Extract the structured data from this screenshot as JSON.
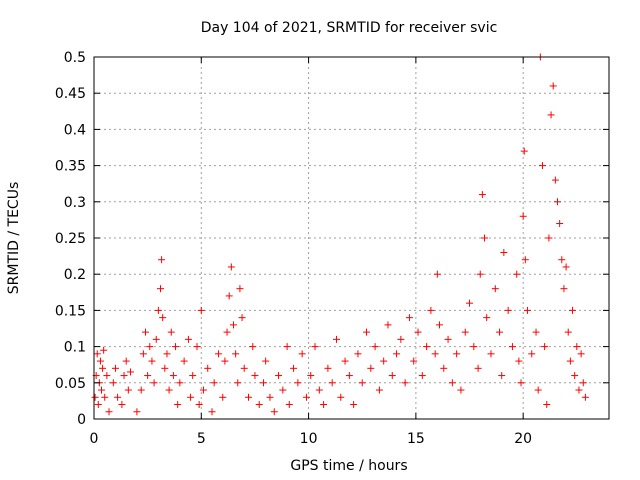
{
  "chart_data": {
    "type": "scatter",
    "title": "Day 104 of 2021, SRMTID for receiver svic",
    "xlabel": "GPS time / hours",
    "ylabel": "SRMTID / TECUs",
    "xlim": [
      0,
      24
    ],
    "ylim": [
      0,
      0.5
    ],
    "x_ticks": [
      "0",
      "5",
      "10",
      "15",
      "20"
    ],
    "x_tick_values": [
      0,
      5,
      10,
      15,
      20
    ],
    "y_ticks": [
      "0",
      "0.05",
      "0.1",
      "0.15",
      "0.2",
      "0.25",
      "0.3",
      "0.35",
      "0.4",
      "0.45",
      "0.5"
    ],
    "y_tick_values": [
      0,
      0.05,
      0.1,
      0.15,
      0.2,
      0.25,
      0.3,
      0.35,
      0.4,
      0.45,
      0.5
    ],
    "grid": true,
    "marker": "plus",
    "color": "#ff0000",
    "series": [
      {
        "points": [
          [
            0.05,
            0.03
          ],
          [
            0.1,
            0.06
          ],
          [
            0.15,
            0.09
          ],
          [
            0.2,
            0.02
          ],
          [
            0.25,
            0.05
          ],
          [
            0.3,
            0.08
          ],
          [
            0.35,
            0.04
          ],
          [
            0.4,
            0.07
          ],
          [
            0.45,
            0.095
          ],
          [
            0.5,
            0.03
          ],
          [
            0.6,
            0.06
          ],
          [
            0.7,
            0.01
          ],
          [
            0.9,
            0.05
          ],
          [
            1.0,
            0.07
          ],
          [
            1.1,
            0.03
          ],
          [
            1.3,
            0.02
          ],
          [
            1.4,
            0.06
          ],
          [
            1.5,
            0.08
          ],
          [
            1.6,
            0.04
          ],
          [
            1.7,
            0.065
          ],
          [
            2.0,
            0.01
          ],
          [
            2.2,
            0.04
          ],
          [
            2.3,
            0.09
          ],
          [
            2.4,
            0.12
          ],
          [
            2.5,
            0.06
          ],
          [
            2.6,
            0.1
          ],
          [
            2.7,
            0.08
          ],
          [
            2.8,
            0.05
          ],
          [
            2.9,
            0.11
          ],
          [
            3.0,
            0.15
          ],
          [
            3.1,
            0.18
          ],
          [
            3.15,
            0.22
          ],
          [
            3.2,
            0.14
          ],
          [
            3.3,
            0.07
          ],
          [
            3.4,
            0.09
          ],
          [
            3.5,
            0.04
          ],
          [
            3.6,
            0.12
          ],
          [
            3.7,
            0.06
          ],
          [
            3.8,
            0.1
          ],
          [
            3.9,
            0.02
          ],
          [
            4.0,
            0.05
          ],
          [
            4.2,
            0.08
          ],
          [
            4.4,
            0.11
          ],
          [
            4.5,
            0.03
          ],
          [
            4.6,
            0.06
          ],
          [
            4.8,
            0.1
          ],
          [
            4.9,
            0.02
          ],
          [
            5.0,
            0.15
          ],
          [
            5.1,
            0.04
          ],
          [
            5.3,
            0.07
          ],
          [
            5.5,
            0.01
          ],
          [
            5.6,
            0.05
          ],
          [
            5.8,
            0.09
          ],
          [
            6.0,
            0.03
          ],
          [
            6.1,
            0.08
          ],
          [
            6.2,
            0.12
          ],
          [
            6.3,
            0.17
          ],
          [
            6.4,
            0.21
          ],
          [
            6.5,
            0.13
          ],
          [
            6.6,
            0.09
          ],
          [
            6.7,
            0.05
          ],
          [
            6.8,
            0.18
          ],
          [
            6.9,
            0.14
          ],
          [
            7.0,
            0.07
          ],
          [
            7.2,
            0.03
          ],
          [
            7.4,
            0.1
          ],
          [
            7.5,
            0.06
          ],
          [
            7.7,
            0.02
          ],
          [
            7.9,
            0.05
          ],
          [
            8.0,
            0.08
          ],
          [
            8.2,
            0.03
          ],
          [
            8.4,
            0.01
          ],
          [
            8.6,
            0.06
          ],
          [
            8.8,
            0.04
          ],
          [
            9.0,
            0.1
          ],
          [
            9.1,
            0.02
          ],
          [
            9.3,
            0.07
          ],
          [
            9.5,
            0.05
          ],
          [
            9.7,
            0.09
          ],
          [
            9.9,
            0.03
          ],
          [
            10.1,
            0.06
          ],
          [
            10.3,
            0.1
          ],
          [
            10.5,
            0.04
          ],
          [
            10.7,
            0.02
          ],
          [
            10.9,
            0.07
          ],
          [
            11.1,
            0.05
          ],
          [
            11.3,
            0.11
          ],
          [
            11.5,
            0.03
          ],
          [
            11.7,
            0.08
          ],
          [
            11.9,
            0.06
          ],
          [
            12.1,
            0.02
          ],
          [
            12.3,
            0.09
          ],
          [
            12.5,
            0.05
          ],
          [
            12.7,
            0.12
          ],
          [
            12.9,
            0.07
          ],
          [
            13.1,
            0.1
          ],
          [
            13.3,
            0.04
          ],
          [
            13.5,
            0.08
          ],
          [
            13.7,
            0.13
          ],
          [
            13.9,
            0.06
          ],
          [
            14.1,
            0.09
          ],
          [
            14.3,
            0.11
          ],
          [
            14.5,
            0.05
          ],
          [
            14.7,
            0.14
          ],
          [
            14.9,
            0.08
          ],
          [
            15.1,
            0.12
          ],
          [
            15.3,
            0.06
          ],
          [
            15.5,
            0.1
          ],
          [
            15.7,
            0.15
          ],
          [
            15.9,
            0.09
          ],
          [
            16.0,
            0.2
          ],
          [
            16.1,
            0.13
          ],
          [
            16.3,
            0.07
          ],
          [
            16.5,
            0.11
          ],
          [
            16.7,
            0.05
          ],
          [
            16.9,
            0.09
          ],
          [
            17.1,
            0.04
          ],
          [
            17.3,
            0.12
          ],
          [
            17.5,
            0.16
          ],
          [
            17.7,
            0.1
          ],
          [
            17.9,
            0.07
          ],
          [
            18.0,
            0.2
          ],
          [
            18.1,
            0.31
          ],
          [
            18.2,
            0.25
          ],
          [
            18.3,
            0.14
          ],
          [
            18.5,
            0.09
          ],
          [
            18.7,
            0.18
          ],
          [
            18.9,
            0.12
          ],
          [
            19.0,
            0.06
          ],
          [
            19.1,
            0.23
          ],
          [
            19.3,
            0.15
          ],
          [
            19.5,
            0.1
          ],
          [
            19.7,
            0.2
          ],
          [
            19.8,
            0.08
          ],
          [
            19.9,
            0.05
          ],
          [
            20.0,
            0.28
          ],
          [
            20.05,
            0.37
          ],
          [
            20.1,
            0.22
          ],
          [
            20.2,
            0.15
          ],
          [
            20.4,
            0.09
          ],
          [
            20.6,
            0.12
          ],
          [
            20.7,
            0.04
          ],
          [
            20.8,
            0.5
          ],
          [
            20.9,
            0.35
          ],
          [
            21.0,
            0.1
          ],
          [
            21.1,
            0.02
          ],
          [
            21.2,
            0.25
          ],
          [
            21.3,
            0.42
          ],
          [
            21.4,
            0.46
          ],
          [
            21.5,
            0.33
          ],
          [
            21.6,
            0.3
          ],
          [
            21.7,
            0.27
          ],
          [
            21.8,
            0.22
          ],
          [
            21.9,
            0.18
          ],
          [
            22.0,
            0.21
          ],
          [
            22.1,
            0.12
          ],
          [
            22.2,
            0.08
          ],
          [
            22.3,
            0.15
          ],
          [
            22.4,
            0.06
          ],
          [
            22.5,
            0.1
          ],
          [
            22.6,
            0.04
          ],
          [
            22.7,
            0.09
          ],
          [
            22.8,
            0.05
          ],
          [
            22.9,
            0.03
          ]
        ]
      }
    ]
  }
}
